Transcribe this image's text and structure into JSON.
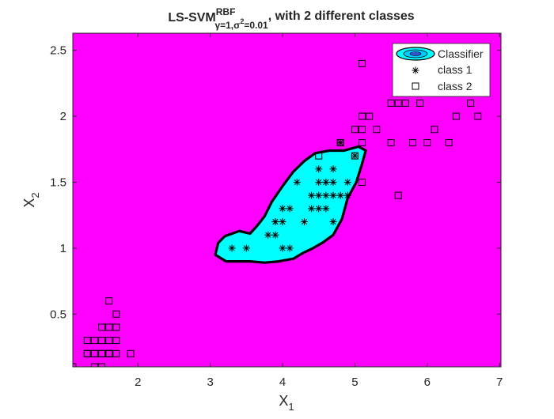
{
  "chart_data": {
    "type": "scatter",
    "title": {
      "main": "LS-SVM",
      "superscript": "RBF",
      "subscript_left": "γ=1,σ",
      "subscript_sup": "2",
      "subscript_right": "=0.01",
      "suffix": ", with 2 different classes"
    },
    "xlabel": {
      "base": "X",
      "sub": "1"
    },
    "ylabel": {
      "base": "X",
      "sub": "2"
    },
    "xlim": [
      1.1,
      7.02
    ],
    "ylim": [
      0.1,
      2.63
    ],
    "xticks": [
      2,
      3,
      4,
      5,
      6,
      7
    ],
    "yticks": [
      0.5,
      1,
      1.5,
      2,
      2.5
    ],
    "grid": false,
    "legend": {
      "placement": "top-right",
      "entries": [
        "Classifier",
        "class 1",
        "class 2"
      ]
    },
    "colors": {
      "class_2_region": "#FF00FF",
      "class_1_region": "#00FFFF",
      "boundary": "#000000",
      "axes_line": "#262626",
      "legend_ellipse_inner": "#3355CC"
    },
    "decision_region": {
      "class": "class 1",
      "boundary_polygon": [
        [
          3.07,
          0.95
        ],
        [
          3.11,
          1.04
        ],
        [
          3.2,
          1.09
        ],
        [
          3.4,
          1.13
        ],
        [
          3.55,
          1.11
        ],
        [
          3.65,
          1.17
        ],
        [
          3.75,
          1.24
        ],
        [
          3.85,
          1.35
        ],
        [
          4.0,
          1.47
        ],
        [
          4.15,
          1.58
        ],
        [
          4.3,
          1.66
        ],
        [
          4.45,
          1.72
        ],
        [
          4.65,
          1.74
        ],
        [
          4.85,
          1.74
        ],
        [
          5.05,
          1.77
        ],
        [
          5.15,
          1.74
        ],
        [
          5.1,
          1.64
        ],
        [
          5.02,
          1.5
        ],
        [
          4.9,
          1.38
        ],
        [
          4.82,
          1.22
        ],
        [
          4.7,
          1.1
        ],
        [
          4.55,
          1.04
        ],
        [
          4.42,
          1.0
        ],
        [
          4.27,
          0.96
        ],
        [
          4.15,
          0.92
        ],
        [
          3.95,
          0.9
        ],
        [
          3.75,
          0.89
        ],
        [
          3.55,
          0.9
        ],
        [
          3.38,
          0.9
        ],
        [
          3.22,
          0.9
        ]
      ]
    },
    "series": [
      {
        "name": "class 1",
        "marker": "asterisk",
        "x": [
          3.3,
          3.5,
          3.8,
          3.9,
          3.9,
          4.0,
          4.0,
          4.0,
          4.1,
          3.9,
          4.1,
          4.2,
          4.3,
          4.4,
          4.4,
          4.5,
          4.5,
          4.5,
          4.5,
          4.6,
          4.6,
          4.6,
          4.7,
          4.7,
          4.7,
          4.7,
          4.8,
          4.9,
          4.9,
          5.0,
          4.8,
          4.6
        ],
        "y": [
          1.0,
          1.0,
          1.1,
          1.1,
          1.2,
          1.2,
          1.3,
          1.0,
          1.0,
          1.2,
          1.3,
          1.5,
          1.2,
          1.4,
          1.3,
          1.3,
          1.5,
          1.6,
          1.4,
          1.4,
          1.5,
          1.3,
          1.4,
          1.5,
          1.6,
          1.2,
          1.4,
          1.5,
          1.4,
          1.7,
          1.8,
          1.5
        ]
      },
      {
        "name": "class 2",
        "marker": "square",
        "x": [
          1.1,
          1.3,
          1.3,
          1.3,
          1.4,
          1.4,
          1.4,
          1.5,
          1.5,
          1.5,
          1.5,
          1.6,
          1.6,
          1.6,
          1.6,
          1.6,
          1.7,
          1.7,
          1.7,
          1.7,
          1.9,
          1.4,
          1.5,
          1.6,
          4.5,
          4.8,
          4.8,
          5.0,
          5.0,
          5.1,
          5.1,
          5.1,
          5.1,
          5.2,
          5.3,
          5.5,
          5.5,
          5.6,
          5.6,
          5.7,
          5.8,
          5.9,
          5.9,
          6.0,
          6.1,
          6.3,
          6.4,
          6.6,
          6.7,
          5.1
        ],
        "y": [
          0.1,
          0.2,
          0.3,
          0.2,
          0.2,
          0.3,
          0.1,
          0.2,
          0.3,
          0.4,
          0.1,
          0.2,
          0.4,
          0.6,
          0.3,
          0.2,
          0.2,
          0.3,
          0.4,
          0.5,
          0.2,
          0.2,
          0.2,
          0.2,
          1.7,
          1.8,
          1.8,
          1.9,
          1.7,
          1.9,
          2.0,
          1.8,
          1.5,
          2.0,
          1.9,
          2.1,
          1.8,
          2.1,
          1.4,
          2.1,
          1.8,
          2.1,
          2.3,
          1.8,
          1.9,
          1.8,
          2.0,
          2.1,
          2.0,
          2.4
        ]
      }
    ]
  }
}
